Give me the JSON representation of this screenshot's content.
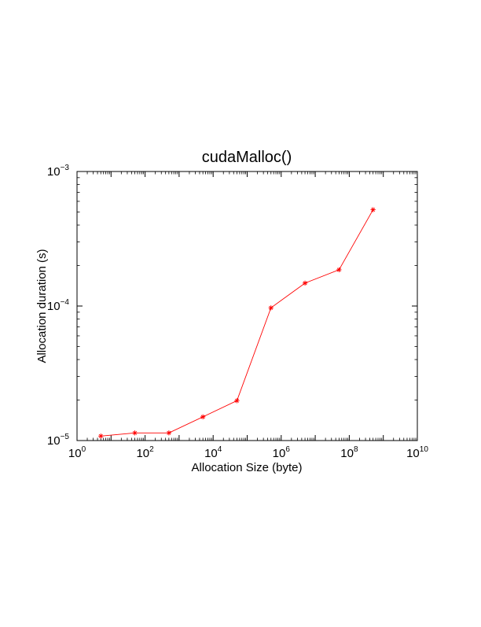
{
  "chart_data": {
    "type": "line",
    "title": "cudaMalloc()",
    "xlabel": "Allocation Size (byte)",
    "ylabel": "Allocation duration (s)",
    "xscale": "log",
    "yscale": "log",
    "xlim": [
      1,
      10000000000
    ],
    "ylim": [
      1e-05,
      0.001
    ],
    "x_ticks": [
      {
        "value": 1,
        "base": "10",
        "exp": "0"
      },
      {
        "value": 100,
        "base": "10",
        "exp": "2"
      },
      {
        "value": 10000,
        "base": "10",
        "exp": "4"
      },
      {
        "value": 1000000,
        "base": "10",
        "exp": "6"
      },
      {
        "value": 100000000,
        "base": "10",
        "exp": "8"
      },
      {
        "value": 10000000000,
        "base": "10",
        "exp": "10"
      }
    ],
    "y_ticks": [
      {
        "value": 1e-05,
        "base": "10",
        "exp": "−5"
      },
      {
        "value": 0.0001,
        "base": "10",
        "exp": "−4"
      },
      {
        "value": 0.001,
        "base": "10",
        "exp": "−3"
      }
    ],
    "grid": false,
    "series": [
      {
        "color": "#ff0000",
        "marker": "asterisk",
        "x": [
          5,
          50,
          500,
          5000,
          50000,
          500000,
          5000000,
          50000000,
          500000000
        ],
        "y": [
          1.08e-05,
          1.14e-05,
          1.14e-05,
          1.5e-05,
          1.98e-05,
          9.7e-05,
          0.000148,
          0.000186,
          0.00052
        ]
      }
    ]
  }
}
